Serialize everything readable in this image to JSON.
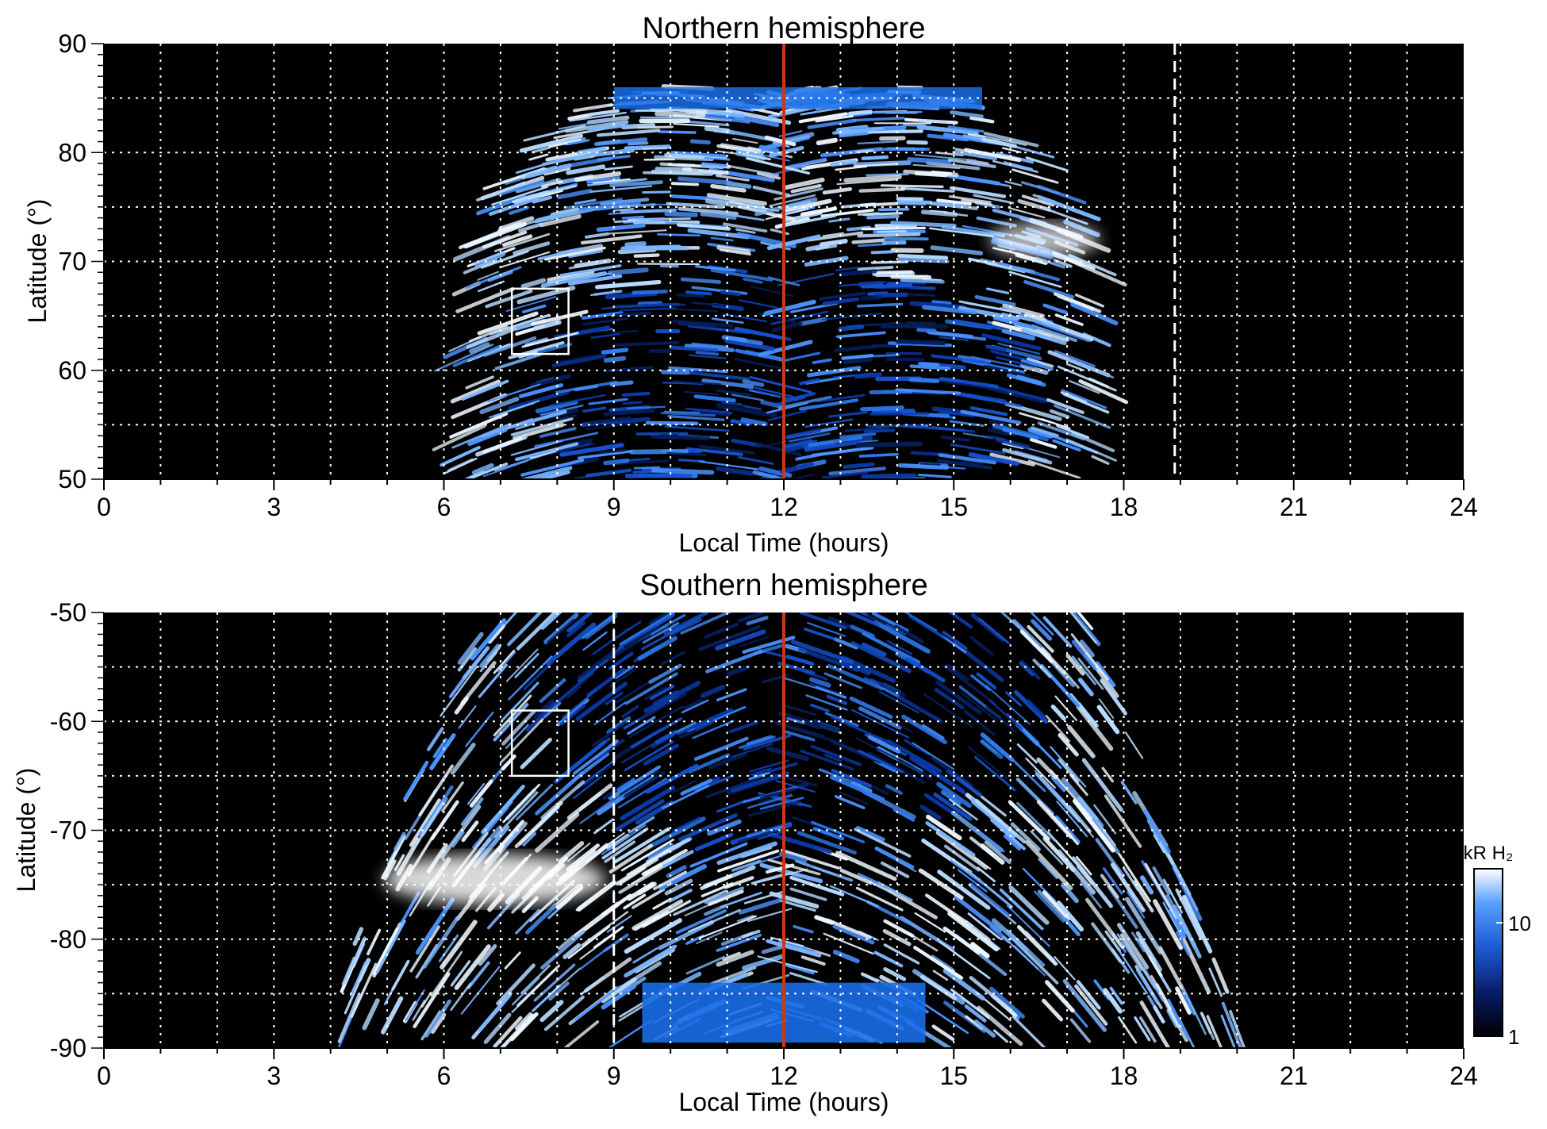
{
  "chart_data": [
    {
      "type": "heatmap",
      "title": "Northern hemisphere",
      "xlabel": "Local Time (hours)",
      "ylabel": "Latitude (°)",
      "xlim": [
        0,
        24
      ],
      "ylim": [
        50,
        90
      ],
      "x_ticks": [
        "0",
        "3",
        "6",
        "9",
        "12",
        "15",
        "18",
        "21",
        "24"
      ],
      "y_ticks": [
        "50",
        "60",
        "70",
        "80",
        "90"
      ],
      "grid": true,
      "noon_line_lt": 12,
      "dashed_line_lt": 18.9,
      "box": {
        "lt": [
          7.2,
          8.2
        ],
        "lat": [
          61.5,
          67.5
        ]
      },
      "emission_region": {
        "lt": [
          6.5,
          18
        ],
        "lat_max": 86
      }
    },
    {
      "type": "heatmap",
      "title": "Southern hemisphere",
      "xlabel": "Local Time (hours)",
      "ylabel": "Latitude (°)",
      "xlim": [
        0,
        24
      ],
      "ylim": [
        -90,
        -50
      ],
      "x_ticks": [
        "0",
        "3",
        "6",
        "9",
        "12",
        "15",
        "18",
        "21",
        "24"
      ],
      "y_ticks": [
        "-50",
        "-60",
        "-70",
        "-80",
        "-90"
      ],
      "grid": true,
      "noon_line_lt": 12,
      "dashed_line_lt": 9,
      "box": {
        "lt": [
          7.2,
          8.2
        ],
        "lat": [
          -65,
          -59
        ]
      },
      "emission_region": {
        "lt": [
          4,
          20.5
        ],
        "lat_min": -89
      }
    }
  ],
  "colorbar": {
    "label": "kR H₂",
    "ticks": [
      "1",
      "10"
    ],
    "scale": "log",
    "range": [
      1,
      25
    ]
  },
  "colors": {
    "background": "#000000",
    "noon_line": "#c43a1a",
    "grid": "#ffffff",
    "emission_dark": "#0a3aa8",
    "emission_mid": "#2f7cf0",
    "emission_bright": "#cfe6ff"
  }
}
